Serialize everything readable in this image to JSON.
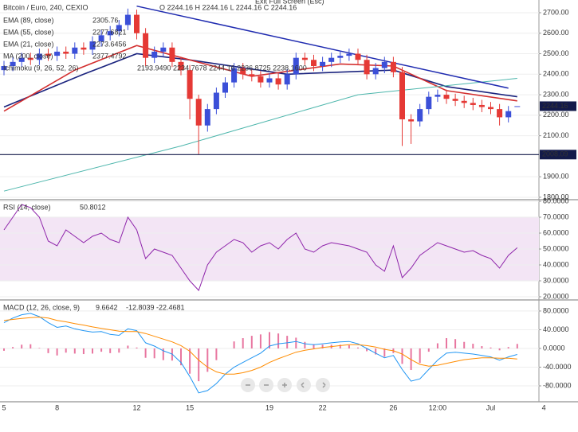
{
  "chart_data": [
    {
      "type": "candlestick",
      "title": "Bitcoin / Euro, 240, CEXIO",
      "ohlc_text": "O 2244.16 H 2244.16 L 2244.16 C 2244.16",
      "exit_text": "Exit Full Screen (Esc)",
      "indicators": [
        {
          "name": "EMA (89, close)",
          "value": "2305.76"
        },
        {
          "name": "EMA (55, close)",
          "value": "2277.6821"
        },
        {
          "name": "EMA (21, close)",
          "value": "2273.6456"
        },
        {
          "name": "MA (200, close)",
          "value": "2377.4792"
        },
        {
          "name": "Ichimoku (9, 26, 52, 26)",
          "value": "2193.9490 2234.7678 2244.16 2236.8725 2238.1600"
        }
      ],
      "categories": [
        "5",
        null,
        null,
        null,
        null,
        null,
        "8",
        null,
        null,
        null,
        null,
        null,
        null,
        null,
        null,
        "12",
        null,
        null,
        null,
        null,
        null,
        "15",
        null,
        null,
        null,
        null,
        null,
        null,
        null,
        null,
        "19",
        null,
        null,
        null,
        null,
        null,
        "22",
        null,
        null,
        null,
        null,
        null,
        null,
        null,
        "26",
        null,
        null,
        null,
        null,
        "12:00",
        null,
        null,
        null,
        null,
        null,
        "Jul",
        null,
        null,
        null,
        null,
        null,
        "4"
      ],
      "open": [
        2420,
        2440,
        2460,
        2480,
        2470,
        2500,
        2490,
        2510,
        2500,
        2530,
        2520,
        2560,
        2590,
        2610,
        2640,
        2690,
        2600,
        2480,
        2510,
        2530,
        2460,
        2420,
        2280,
        2150,
        2230,
        2310,
        2360,
        2430,
        2400,
        2390,
        2360,
        2380,
        2350,
        2400,
        2480,
        2470,
        2440,
        2460,
        2480,
        2490,
        2500,
        2470,
        2400,
        2430,
        2460,
        2410,
        2180,
        2170,
        2230,
        2290,
        2300,
        2280,
        2270,
        2260,
        2250,
        2240,
        2230,
        2190,
        2244.16,
        null,
        null,
        null
      ],
      "high": [
        2465,
        2485,
        2505,
        2505,
        2525,
        2525,
        2535,
        2535,
        2555,
        2555,
        2585,
        2615,
        2635,
        2665,
        2720,
        2715,
        2625,
        2535,
        2555,
        2555,
        2485,
        2445,
        2300,
        2255,
        2335,
        2385,
        2455,
        2455,
        2425,
        2415,
        2405,
        2405,
        2425,
        2505,
        2505,
        2495,
        2485,
        2505,
        2515,
        2525,
        2525,
        2495,
        2455,
        2485,
        2485,
        2435,
        2205,
        2255,
        2315,
        2325,
        2325,
        2305,
        2295,
        2285,
        2275,
        2265,
        2255,
        2245,
        2244.16,
        null,
        null,
        null
      ],
      "low": [
        2395,
        2415,
        2435,
        2445,
        2445,
        2465,
        2465,
        2475,
        2475,
        2495,
        2495,
        2535,
        2565,
        2585,
        2615,
        2570,
        2440,
        2455,
        2485,
        2435,
        2395,
        2180,
        2010,
        2120,
        2205,
        2285,
        2335,
        2375,
        2365,
        2335,
        2335,
        2325,
        2325,
        2375,
        2445,
        2415,
        2415,
        2435,
        2455,
        2465,
        2445,
        2375,
        2375,
        2405,
        2385,
        2050,
        2060,
        2145,
        2205,
        2265,
        2255,
        2245,
        2235,
        2225,
        2215,
        2205,
        2150,
        2165,
        2244.16,
        null,
        null,
        null
      ],
      "close": [
        2440,
        2460,
        2480,
        2470,
        2500,
        2490,
        2510,
        2500,
        2530,
        2520,
        2560,
        2590,
        2610,
        2640,
        2690,
        2600,
        2480,
        2510,
        2530,
        2460,
        2420,
        2280,
        2150,
        2230,
        2310,
        2360,
        2430,
        2400,
        2390,
        2360,
        2380,
        2350,
        2400,
        2480,
        2470,
        2440,
        2460,
        2480,
        2490,
        2500,
        2470,
        2400,
        2430,
        2460,
        2410,
        2180,
        2170,
        2230,
        2290,
        2300,
        2280,
        2270,
        2260,
        2250,
        2240,
        2230,
        2190,
        2220,
        2244.16,
        null,
        null,
        null
      ],
      "up_color": "#3b4fd8",
      "down_color": "#e53935",
      "lines": [
        {
          "color": "#1a237e",
          "x": [
            0,
            9,
            15,
            21,
            32,
            44,
            50,
            58
          ],
          "values": [
            2240,
            2400,
            2500,
            2470,
            2400,
            2420,
            2340,
            2290
          ]
        },
        {
          "color": "#d32f2f",
          "x": [
            0,
            8,
            15,
            21,
            28,
            38,
            44,
            50,
            58
          ],
          "values": [
            2220,
            2420,
            2540,
            2470,
            2390,
            2450,
            2440,
            2320,
            2270
          ]
        },
        {
          "color": "#4db6ac",
          "x": [
            0,
            20,
            40,
            58
          ],
          "values": [
            1830,
            2050,
            2300,
            2380
          ]
        },
        {
          "color": "#1f2bb0",
          "x": [
            15,
            57
          ],
          "values": [
            2732,
            2332
          ]
        }
      ],
      "hline": 2008.09,
      "ylim": [
        1792,
        2762
      ],
      "yticks": [
        {
          "value": 1800,
          "label": "1800.00"
        },
        {
          "value": 1900,
          "label": "1900.00"
        },
        {
          "value": 2100,
          "label": "2100.00"
        },
        {
          "value": 2200,
          "label": "2200.00"
        },
        {
          "value": 2300,
          "label": "2300.00"
        },
        {
          "value": 2400,
          "label": "2400.00"
        },
        {
          "value": 2500,
          "label": "2500.00"
        },
        {
          "value": 2600,
          "label": "2600.00"
        },
        {
          "value": 2700,
          "label": "2700.00"
        }
      ],
      "grid": true
    },
    {
      "type": "line",
      "title": "RSI (14, close)",
      "series": [
        {
          "color": "#8e24aa",
          "values": [
            62,
            70,
            78,
            76,
            70,
            55,
            52,
            62,
            58,
            54,
            58,
            60,
            56,
            54,
            70,
            62,
            44,
            50,
            48,
            46,
            38,
            30,
            24,
            40,
            48,
            52,
            56,
            54,
            48,
            52,
            54,
            50,
            56,
            60,
            50,
            48,
            52,
            54,
            53,
            52,
            50,
            48,
            40,
            36,
            52,
            32,
            38,
            46,
            50,
            54,
            52,
            50,
            48,
            49,
            46,
            44,
            38,
            46,
            50.8012,
            null,
            null,
            null
          ]
        }
      ],
      "band": [
        30,
        70
      ],
      "band_color": "#f3e5f5",
      "ylim": [
        18.5,
        80.5
      ],
      "yticks": [
        {
          "value": 20,
          "label": "20.0000"
        },
        {
          "value": 30,
          "label": "30.0000"
        },
        {
          "value": 40,
          "label": "40.0000"
        },
        {
          "value": 50,
          "label": "50.0000"
        },
        {
          "value": 60,
          "label": "60.0000"
        },
        {
          "value": 70,
          "label": "70.0000"
        },
        {
          "value": 80,
          "label": "80.0000"
        }
      ],
      "grid": true
    },
    {
      "type": "macd",
      "title": "MACD (12, 26, close, 9)",
      "series": [
        {
          "kind": "histogram",
          "color": "#d81b60",
          "values": [
            -5,
            3,
            8,
            9,
            1,
            -10,
            -15,
            -9,
            -11,
            -12,
            -11,
            -7,
            -10,
            -9,
            6,
            2,
            -20,
            -21,
            -25,
            -26,
            -36,
            -54,
            -70,
            -50,
            -25,
            0,
            15,
            22,
            27,
            30,
            35,
            32,
            27,
            23,
            14,
            9,
            8,
            8,
            8,
            7,
            2,
            -6,
            -13,
            -18,
            -10,
            -33,
            -46,
            -31,
            -7,
            11,
            22,
            20,
            14,
            10,
            5,
            2,
            -4,
            3,
            9.6642,
            null,
            null,
            null
          ]
        },
        {
          "kind": "line",
          "color": "#2196f3",
          "values": [
            55,
            65,
            72,
            75,
            68,
            55,
            45,
            48,
            42,
            38,
            35,
            36,
            30,
            28,
            42,
            38,
            12,
            5,
            -5,
            -12,
            -30,
            -60,
            -95,
            -90,
            -75,
            -55,
            -40,
            -30,
            -20,
            -10,
            5,
            10,
            12,
            15,
            10,
            8,
            10,
            12,
            14,
            15,
            10,
            0,
            -10,
            -20,
            -15,
            -45,
            -70,
            -65,
            -45,
            -25,
            -10,
            -8,
            -10,
            -12,
            -15,
            -18,
            -25,
            -18,
            -12.8039,
            null,
            null,
            null
          ]
        },
        {
          "kind": "line",
          "color": "#ff8c00",
          "values": [
            60,
            62,
            64,
            66,
            67,
            65,
            60,
            57,
            53,
            50,
            46,
            43,
            40,
            37,
            36,
            36,
            32,
            26,
            20,
            14,
            6,
            -6,
            -25,
            -40,
            -50,
            -55,
            -55,
            -52,
            -47,
            -40,
            -30,
            -22,
            -15,
            -8,
            -4,
            -1,
            2,
            4,
            6,
            8,
            8,
            6,
            3,
            -2,
            -5,
            -12,
            -24,
            -34,
            -38,
            -36,
            -32,
            -28,
            -24,
            -22,
            -20,
            -20,
            -21,
            -21,
            -22.4681,
            null,
            null,
            null
          ]
        }
      ],
      "ylim": [
        -114,
        102
      ],
      "yticks": [
        {
          "value": -80,
          "label": "-80.0000"
        },
        {
          "value": -40,
          "label": "-40.0000"
        },
        {
          "value": 0,
          "label": "0.0000"
        },
        {
          "value": 40,
          "label": "40.0000"
        },
        {
          "value": 80,
          "label": "80.0000"
        }
      ],
      "grid": true
    }
  ]
}
